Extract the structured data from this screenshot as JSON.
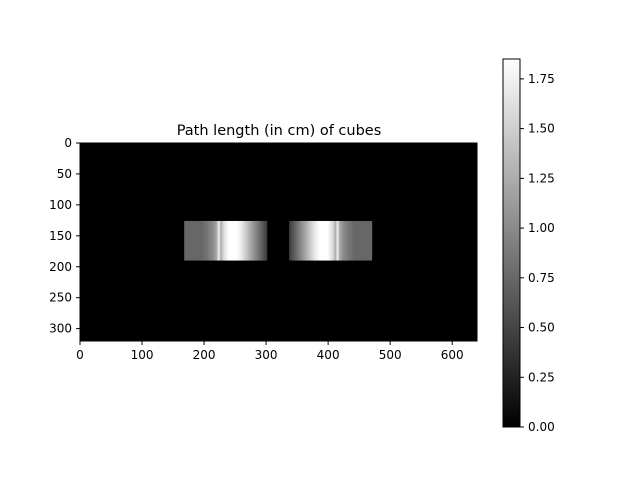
{
  "chart_data": {
    "type": "heatmap",
    "title": "Path length (in cm) of cubes",
    "x_ticks": [
      0,
      100,
      200,
      300,
      400,
      500,
      600
    ],
    "y_ticks": [
      0,
      50,
      100,
      150,
      200,
      250,
      300
    ],
    "xlim": [
      0,
      640
    ],
    "ylim": [
      320,
      0
    ],
    "colormap": "gray",
    "colorbar": {
      "range": [
        0.0,
        1.85
      ],
      "ticks": [
        "0.00",
        "0.25",
        "0.50",
        "0.75",
        "1.00",
        "1.25",
        "1.50",
        "1.75"
      ]
    },
    "background_value": 0.0,
    "regions": [
      {
        "x": [
          168,
          302
        ],
        "y": [
          126,
          190
        ],
        "profile": [
          [
            168,
            0.75
          ],
          [
            196,
            0.75
          ],
          [
            205,
            0.85
          ],
          [
            214,
            1.0
          ],
          [
            220,
            1.2
          ],
          [
            224,
            1.75
          ],
          [
            227,
            1.25
          ],
          [
            232,
            1.6
          ],
          [
            240,
            1.85
          ],
          [
            252,
            1.85
          ],
          [
            260,
            1.7
          ],
          [
            268,
            1.45
          ],
          [
            276,
            1.2
          ],
          [
            286,
            0.9
          ],
          [
            296,
            0.6
          ],
          [
            302,
            0.4
          ]
        ]
      },
      {
        "x": [
          337,
          471
        ],
        "y": [
          126,
          190
        ],
        "profile": [
          [
            337,
            0.4
          ],
          [
            343,
            0.6
          ],
          [
            353,
            0.9
          ],
          [
            363,
            1.2
          ],
          [
            371,
            1.45
          ],
          [
            379,
            1.7
          ],
          [
            387,
            1.85
          ],
          [
            399,
            1.85
          ],
          [
            407,
            1.6
          ],
          [
            412,
            1.25
          ],
          [
            415,
            1.75
          ],
          [
            419,
            1.2
          ],
          [
            425,
            1.0
          ],
          [
            434,
            0.85
          ],
          [
            443,
            0.75
          ],
          [
            471,
            0.75
          ]
        ]
      }
    ]
  }
}
